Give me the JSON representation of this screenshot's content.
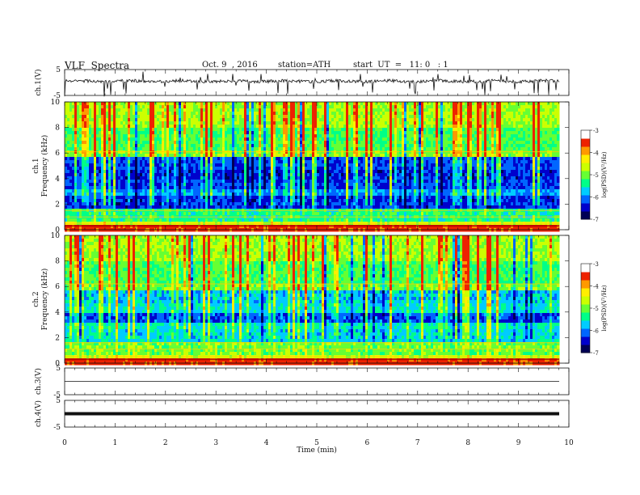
{
  "header": {
    "title": "VLF  Spectra",
    "date": "Oct. 9  , 2016",
    "station": "station=ATH",
    "start": "start  UT  =   11: 0   : 1"
  },
  "colors": {
    "waveform": "#111111",
    "colormap": [
      "#000055",
      "#0000cc",
      "#0066ff",
      "#00ccff",
      "#00ff88",
      "#66ff33",
      "#ccff00",
      "#ffee00",
      "#ff9900",
      "#ee2200",
      "#ffffff"
    ]
  },
  "chart_data": [
    {
      "type": "line",
      "panel": "ch1",
      "ylabel": "ch.1(V)",
      "yticks": [
        "5",
        "-5"
      ],
      "ylim": [
        -5,
        5
      ],
      "xlim": [
        0,
        10
      ],
      "baseline": 0.5,
      "description": "noisy waveform with spiky transients"
    },
    {
      "type": "heatmap",
      "panel": "ch1-spectrogram",
      "ylabel_channel": "ch.1",
      "ylabel": "Frequency  (kHz)",
      "yticks": [
        "0",
        "2",
        "4",
        "6",
        "8",
        "10"
      ],
      "ylim": [
        0,
        10
      ],
      "xlim": [
        0,
        9.8
      ],
      "colorbar": {
        "label": "log(PSD)(V²/Hz)",
        "ticks": [
          "-3",
          "-4",
          "-5",
          "-6",
          "-7"
        ],
        "range": [
          -7,
          -3
        ]
      }
    },
    {
      "type": "heatmap",
      "panel": "ch2-spectrogram",
      "ylabel_channel": "ch.2",
      "ylabel": "Frequency  (kHz)",
      "yticks": [
        "0",
        "2",
        "4",
        "6",
        "8",
        "10"
      ],
      "ylim": [
        0,
        10
      ],
      "xlim": [
        0,
        9.8
      ],
      "colorbar": {
        "label": "log(PSD)(V²/Hz)",
        "ticks": [
          "-3",
          "-4",
          "-5",
          "-6",
          "-7"
        ],
        "range": [
          -7,
          -3
        ]
      }
    },
    {
      "type": "line",
      "panel": "ch3",
      "ylabel": "ch.3(V)",
      "yticks": [
        "5",
        "-5"
      ],
      "ylim": [
        -5,
        5
      ],
      "xlim": [
        0,
        9.8
      ],
      "baseline": 0.0
    },
    {
      "type": "line",
      "panel": "ch4",
      "ylabel": "ch.4(V)",
      "yticks": [
        "5",
        "-5"
      ],
      "ylim": [
        -5,
        5
      ],
      "xlim": [
        0,
        9.8
      ],
      "baseline": 0.0
    }
  ],
  "xaxis": {
    "label": "Time  (min)",
    "ticks": [
      "0",
      "1",
      "2",
      "3",
      "4",
      "5",
      "6",
      "7",
      "8",
      "9",
      "10"
    ]
  }
}
